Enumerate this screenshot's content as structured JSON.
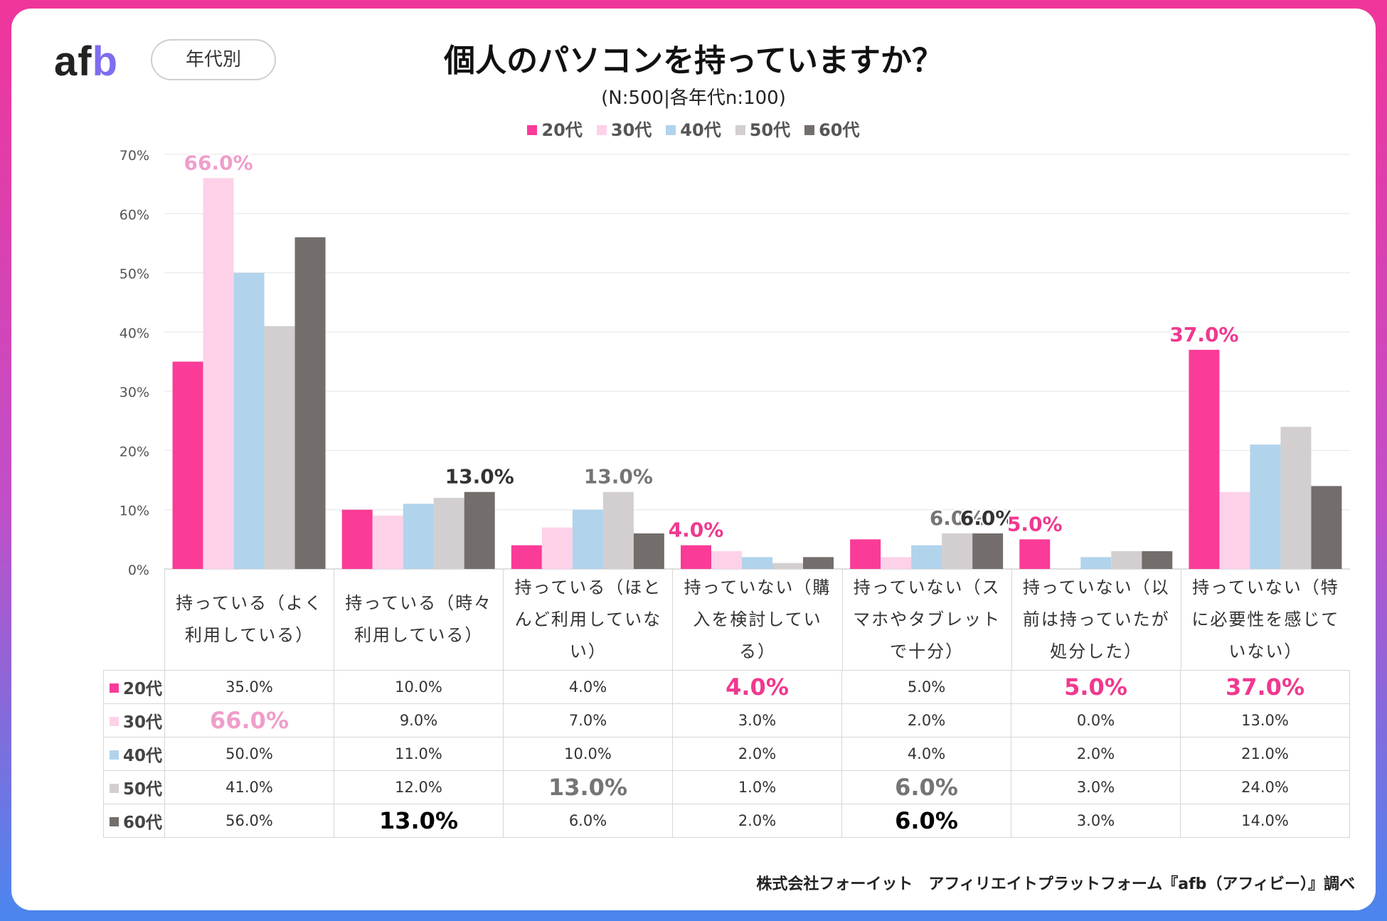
{
  "header": {
    "logo_a": "af",
    "logo_b": "b",
    "tag": "年代別",
    "title": "個人のパソコンを持っていますか？",
    "subtitle": "(N:500|各年代n:100)"
  },
  "footer": {
    "credit": "株式会社フォーイット　アフィリエイトプラットフォーム『afb（アフィビー）』調べ"
  },
  "chart_data": {
    "type": "bar",
    "ylim": [
      0,
      70
    ],
    "yticks": [
      "0%",
      "10%",
      "20%",
      "30%",
      "40%",
      "50%",
      "60%",
      "70%"
    ],
    "grid": true,
    "legend_position": "top",
    "categories": [
      "持っている（よく利用している）",
      "持っている（時々利用している）",
      "持っている（ほとんど利用していない）",
      "持っていない（購入を検討している）",
      "持っていない（スマホやタブレットで十分）",
      "持っていない（以前は持っていたが処分した）",
      "持っていない（特に必要性を感じていない）"
    ],
    "series": [
      {
        "name": "20代",
        "color": "#fa3b97",
        "values": [
          35,
          10,
          4,
          4,
          5,
          5,
          37
        ]
      },
      {
        "name": "30代",
        "color": "#fdd2e9",
        "values": [
          66,
          9,
          7,
          3,
          2,
          0,
          13
        ]
      },
      {
        "name": "40代",
        "color": "#b1d3ec",
        "values": [
          50,
          11,
          10,
          2,
          4,
          2,
          21
        ]
      },
      {
        "name": "50代",
        "color": "#d3cfd0",
        "values": [
          41,
          12,
          13,
          1,
          6,
          3,
          24
        ]
      },
      {
        "name": "60代",
        "color": "#736e6c",
        "values": [
          56,
          13,
          6,
          2,
          6,
          3,
          14
        ]
      }
    ],
    "table": {
      "rows": [
        {
          "name": "20代",
          "cells": [
            "35.0%",
            "10.0%",
            "4.0%",
            "4.0%",
            "5.0%",
            "5.0%",
            "37.0%"
          ]
        },
        {
          "name": "30代",
          "cells": [
            "66.0%",
            "9.0%",
            "7.0%",
            "3.0%",
            "2.0%",
            "0.0%",
            "13.0%"
          ]
        },
        {
          "name": "40代",
          "cells": [
            "50.0%",
            "11.0%",
            "10.0%",
            "2.0%",
            "4.0%",
            "2.0%",
            "21.0%"
          ]
        },
        {
          "name": "50代",
          "cells": [
            "41.0%",
            "12.0%",
            "13.0%",
            "1.0%",
            "6.0%",
            "3.0%",
            "24.0%"
          ]
        },
        {
          "name": "60代",
          "cells": [
            "56.0%",
            "13.0%",
            "6.0%",
            "2.0%",
            "6.0%",
            "3.0%",
            "14.0%"
          ]
        }
      ]
    },
    "annotations": [
      {
        "series": 1,
        "category": 0,
        "text": "66.0%",
        "color": "#ef9ecb"
      },
      {
        "series": 4,
        "category": 1,
        "text": "13.0%",
        "color": "#333333"
      },
      {
        "series": 3,
        "category": 2,
        "text": "13.0%",
        "color": "#757575"
      },
      {
        "series": 0,
        "category": 3,
        "text": "4.0%",
        "color": "#f0388f"
      },
      {
        "series": 3,
        "category": 4,
        "text": "6.0%",
        "color": "#757575"
      },
      {
        "series": 4,
        "category": 4,
        "text": "6.0%",
        "color": "#333333"
      },
      {
        "series": 0,
        "category": 5,
        "text": "5.0%",
        "color": "#f0388f"
      },
      {
        "series": 0,
        "category": 6,
        "text": "37.0%",
        "color": "#f0388f"
      }
    ]
  }
}
